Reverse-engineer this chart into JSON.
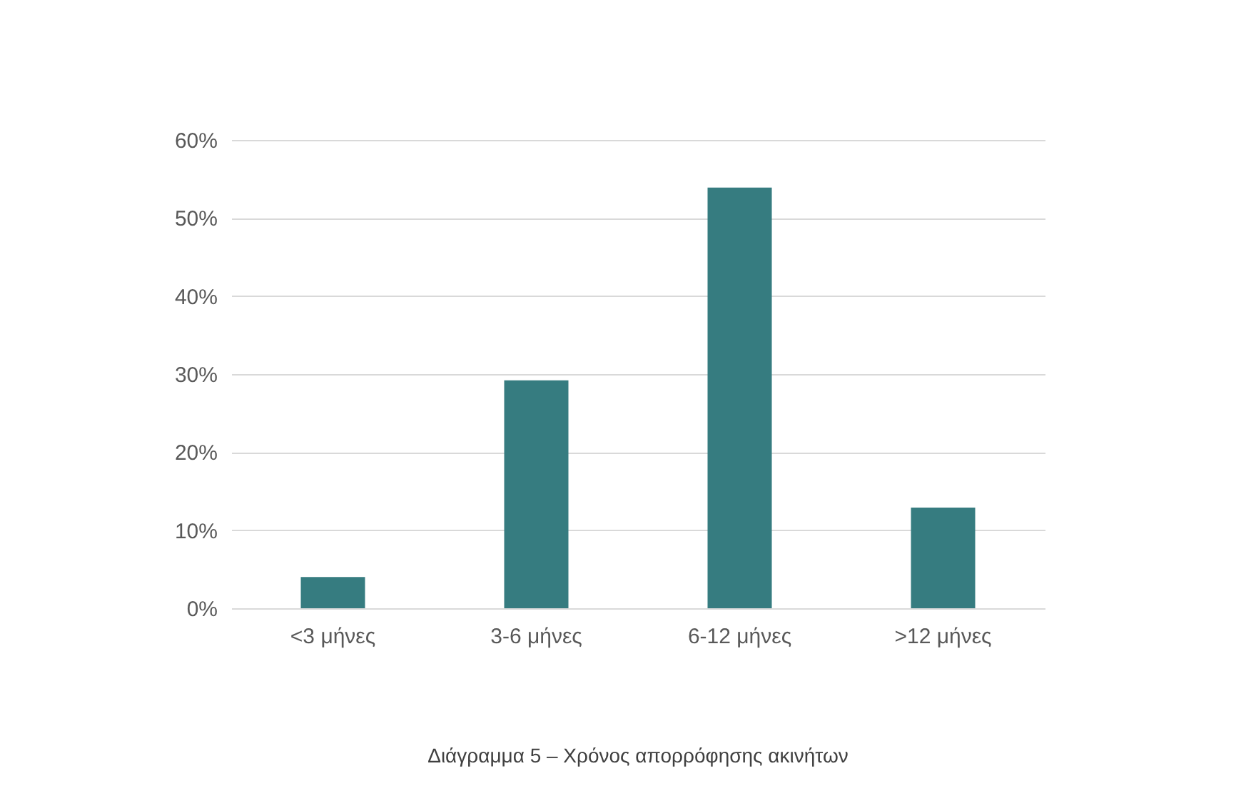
{
  "chart_data": {
    "type": "bar",
    "categories": [
      "<3 μήνες",
      "3-6 μήνες",
      "6-12 μήνες",
      ">12 μήνες"
    ],
    "values": [
      4.0,
      29.2,
      53.9,
      12.9
    ],
    "color": "#367c80",
    "ylim": [
      0,
      60
    ],
    "yticks": [
      {
        "value": 0,
        "label": "0%"
      },
      {
        "value": 10,
        "label": "10%"
      },
      {
        "value": 20,
        "label": "20%"
      },
      {
        "value": 30,
        "label": "30%"
      },
      {
        "value": 40,
        "label": "40%"
      },
      {
        "value": 50,
        "label": "50%"
      },
      {
        "value": 60,
        "label": "60%"
      }
    ],
    "grid": "y",
    "annotations": [
      "Διάγραμμα 5 – Χρόνος απορρόφησης ακινήτων"
    ]
  }
}
